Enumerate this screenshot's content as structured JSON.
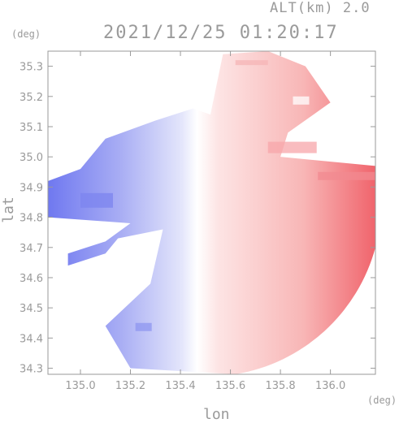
{
  "header": {
    "altitude": "ALT(km) 2.0",
    "timestamp": "2021/12/25 01:20:17"
  },
  "chart_data": {
    "type": "heatmap",
    "title": "2021/12/25 01:20:17",
    "subtitle": "ALT(km) 2.0",
    "xlabel": "lon",
    "ylabel": "lat",
    "x_unit": "(deg)",
    "y_unit": "(deg)",
    "xlim": [
      134.87,
      136.18
    ],
    "ylim": [
      34.28,
      35.35
    ],
    "x_ticks": [
      135.0,
      135.2,
      135.4,
      135.6,
      135.8,
      136.0
    ],
    "x_tick_labels": [
      "135.0",
      "135.2",
      "135.4",
      "135.6",
      "135.8",
      "136.0"
    ],
    "y_ticks": [
      34.3,
      34.4,
      34.5,
      34.6,
      34.7,
      34.8,
      34.9,
      35.0,
      35.1,
      35.2,
      35.3
    ],
    "y_tick_labels": [
      "34.3",
      "34.4",
      "34.5",
      "34.6",
      "34.7",
      "34.8",
      "34.9",
      "35.0",
      "35.1",
      "35.2",
      "35.3"
    ],
    "colors": {
      "approaching": "#6f78f0",
      "receding": "#f0646c",
      "neutral": "#ffffff",
      "axis": "#9a9a9a"
    },
    "radar_center": [
      135.52,
      34.82
    ],
    "zero_line_lon": 135.55
  }
}
